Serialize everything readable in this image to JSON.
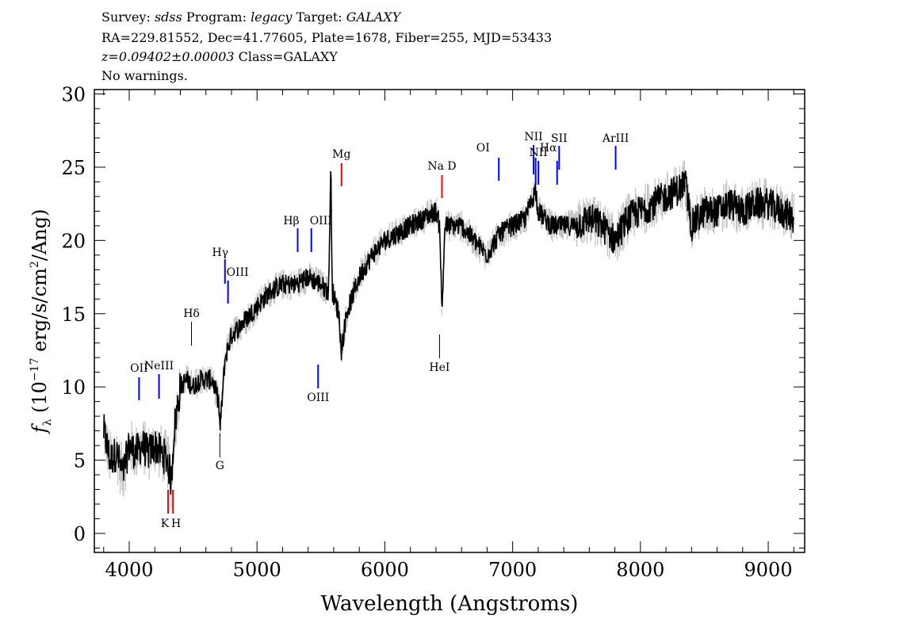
{
  "header": {
    "line1": {
      "survey_label": "Survey:",
      "survey": "sdss",
      "program_label": "Program:",
      "program": "legacy",
      "target_label": "Target:",
      "target": "GALAXY"
    },
    "line2": "RA=229.81552, Dec=41.77605, Plate=1678, Fiber=255, MJD=53433",
    "line3": {
      "z": "z=0.09402±0.00003",
      "class": "Class=GALAXY"
    },
    "line4": "No warnings."
  },
  "chart_data": {
    "type": "line",
    "xlabel": "Wavelength (Angstroms)",
    "ylabel": "f_λ (10^-17 erg/s/cm^2/Ang)",
    "xlim": [
      3727,
      9285
    ],
    "ylim": [
      -1.3,
      30.3
    ],
    "xticks": [
      4000,
      5000,
      6000,
      7000,
      8000,
      9000
    ],
    "yticks": [
      0,
      5,
      10,
      15,
      20,
      25,
      30
    ],
    "grid": false,
    "colors": {
      "spectrum": "#000000",
      "error_band": "#c0c0c0",
      "emission": "#0000ff",
      "absorption": "#ff0000",
      "other": "#000000"
    },
    "spectrum_smoothed": {
      "x": [
        3800,
        3850,
        3900,
        3950,
        4000,
        4050,
        4100,
        4150,
        4200,
        4250,
        4300,
        4330,
        4350,
        4400,
        4450,
        4500,
        4550,
        4600,
        4650,
        4700,
        4710,
        4750,
        4800,
        4850,
        4900,
        5000,
        5100,
        5200,
        5300,
        5400,
        5500,
        5560,
        5577,
        5590,
        5640,
        5660,
        5700,
        5800,
        5900,
        6000,
        6100,
        6200,
        6300,
        6400,
        6430,
        6447,
        6470,
        6500,
        6600,
        6700,
        6800,
        6900,
        7000,
        7100,
        7180,
        7200,
        7250,
        7300,
        7400,
        7500,
        7600,
        7700,
        7800,
        7900,
        8000,
        8100,
        8200,
        8300,
        8350,
        8400,
        8500,
        8600,
        8700,
        8800,
        8900,
        9000,
        9100,
        9200
      ],
      "y": [
        7,
        5,
        5.5,
        4,
        6,
        5.5,
        6,
        5.5,
        6,
        5.5,
        5,
        3.5,
        7,
        10,
        10.5,
        10,
        10.5,
        10.5,
        10.5,
        9,
        7,
        12,
        13.5,
        14,
        14.5,
        15.5,
        16.5,
        17,
        17,
        17.5,
        17,
        16.5,
        25,
        16.5,
        15,
        12.5,
        15,
        17.5,
        19,
        20,
        20.5,
        21,
        21.5,
        22,
        21,
        15,
        21,
        21,
        21,
        20,
        19,
        20.5,
        21,
        21.5,
        23.5,
        22,
        21.5,
        21,
        21,
        21,
        21.5,
        21,
        20,
        21.5,
        22,
        22.5,
        23,
        23.5,
        24,
        21,
        22,
        22,
        22.5,
        22,
        22.5,
        22.5,
        22,
        21.5
      ]
    },
    "line_labels": [
      {
        "label": "OII",
        "wavelength": 4077,
        "kind": "emission"
      },
      {
        "label": "NeIII",
        "wavelength": 4233,
        "kind": "emission"
      },
      {
        "label": "K",
        "wavelength": 4304,
        "kind": "absorption"
      },
      {
        "label": "H",
        "wavelength": 4342,
        "kind": "absorption"
      },
      {
        "label": "Hδ",
        "wavelength": 4487,
        "kind": "other"
      },
      {
        "label": "G",
        "wavelength": 4709,
        "kind": "other"
      },
      {
        "label": "Hγ",
        "wavelength": 4749,
        "kind": "emission"
      },
      {
        "label": "OIII",
        "wavelength": 4773,
        "kind": "emission"
      },
      {
        "label": "Hβ",
        "wavelength": 5318,
        "kind": "emission"
      },
      {
        "label": "OIII",
        "wavelength": 5425,
        "kind": "emission"
      },
      {
        "label": "OIII",
        "wavelength": 5478,
        "kind": "emission"
      },
      {
        "label": "Mg",
        "wavelength": 5661,
        "kind": "absorption"
      },
      {
        "label": "HeI",
        "wavelength": 6428,
        "kind": "other"
      },
      {
        "label": "Na D",
        "wavelength": 6447,
        "kind": "absorption"
      },
      {
        "label": "OI",
        "wavelength": 6892,
        "kind": "emission"
      },
      {
        "label": "NII",
        "wavelength": 7164,
        "kind": "emission"
      },
      {
        "label": "Hα",
        "wavelength": 7180,
        "kind": "emission"
      },
      {
        "label": "NII",
        "wavelength": 7202,
        "kind": "emission"
      },
      {
        "label": "SII",
        "wavelength": 7348,
        "kind": "emission"
      },
      {
        "label": "SII",
        "wavelength": 7364,
        "kind": "emission"
      },
      {
        "label": "ArIII",
        "wavelength": 7806,
        "kind": "emission"
      }
    ]
  }
}
